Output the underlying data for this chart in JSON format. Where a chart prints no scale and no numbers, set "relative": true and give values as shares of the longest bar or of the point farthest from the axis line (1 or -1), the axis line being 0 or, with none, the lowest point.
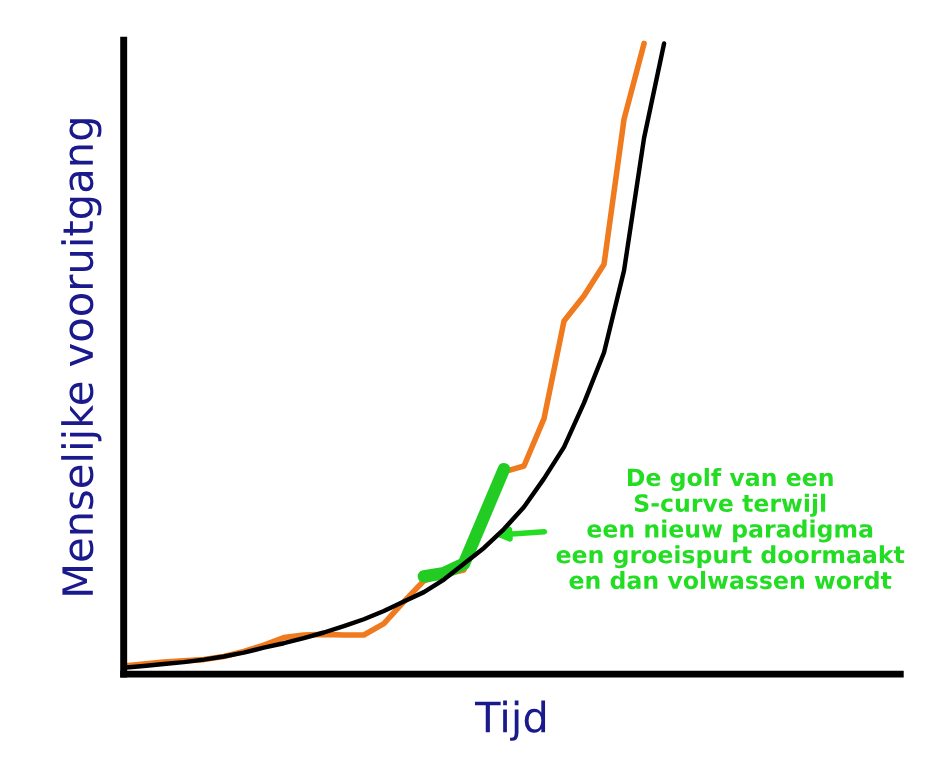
{
  "chart_data": {
    "type": "line",
    "relative": true,
    "xlabel": "Tijd",
    "ylabel": "Menselijke vooruitgang",
    "marker": "none",
    "line_style": "solid",
    "categories": [
      null,
      null,
      null,
      null,
      null,
      null,
      null,
      null,
      null,
      null,
      null,
      null,
      null,
      null,
      null,
      null,
      null,
      null,
      null,
      null,
      null,
      null,
      null,
      null,
      null,
      null,
      null,
      null,
      null,
      null,
      null,
      null,
      null,
      null,
      null,
      null,
      null,
      null,
      null
    ],
    "annotations": [
      "De golf van een\nS-curve terwijl\neen nieuw paradigma\neen groeispurt doormaakt\nen dan volwassen wordt"
    ],
    "series": [
      {
        "color": "#000000",
        "values": [
          0.01,
          0.013,
          0.016,
          0.019,
          0.023,
          0.028,
          0.034,
          0.042,
          0.049,
          0.057,
          0.066,
          0.076,
          0.087,
          0.1,
          0.115,
          0.13,
          0.15,
          0.175,
          0.2,
          0.23,
          0.265,
          0.31,
          0.36,
          0.43,
          0.51,
          0.64,
          0.85,
          1.0,
          null,
          null,
          null,
          null,
          null,
          null,
          null,
          null,
          null,
          null,
          null
        ]
      },
      {
        "color": "#f07a1e",
        "values": [
          0.013,
          0.016,
          0.019,
          0.021,
          0.023,
          0.028,
          0.036,
          0.046,
          0.058,
          0.062,
          0.063,
          0.062,
          0.062,
          0.08,
          0.115,
          0.148,
          0.158,
          0.165,
          0.245,
          0.321,
          0.33,
          0.405,
          0.56,
          0.6,
          0.65,
          0.88,
          1.0,
          null,
          null,
          null,
          null,
          null,
          null,
          null,
          null,
          null,
          null,
          null,
          null
        ]
      },
      {
        "color": "#22cc22",
        "values": [
          null,
          null,
          null,
          null,
          null,
          null,
          null,
          null,
          null,
          null,
          null,
          null,
          null,
          null,
          null,
          0.155,
          0.16,
          0.175,
          0.25,
          0.325,
          null,
          null,
          null,
          null,
          null,
          null,
          null,
          null,
          null,
          null,
          null,
          null,
          null,
          null,
          null,
          null,
          null,
          null,
          null
        ]
      }
    ]
  }
}
